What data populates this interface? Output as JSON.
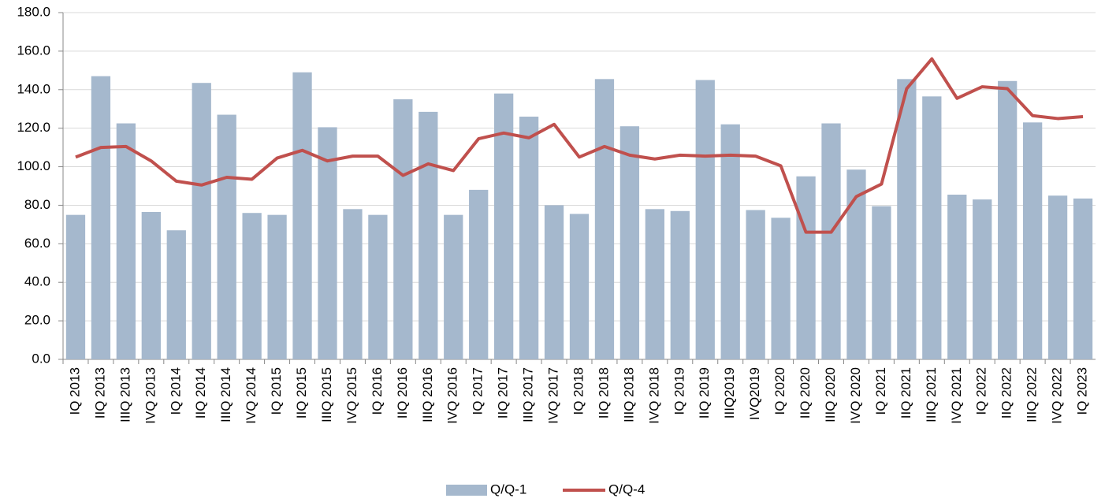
{
  "chart_data": {
    "type": "bar_line",
    "categories": [
      "IQ 2013",
      "IIQ 2013",
      "IIIQ 2013",
      "IVQ 2013",
      "IQ 2014",
      "IIQ 2014",
      "IIIQ 2014",
      "IVQ 2014",
      "IQ 2015",
      "IIQ 2015",
      "IIIQ 2015",
      "IVQ 2015",
      "IQ 2016",
      "IIQ 2016",
      "IIIQ 2016",
      "IVQ 2016",
      "IQ 2017",
      "IIQ 2017",
      "IIIQ 2017",
      "IVQ 2017",
      "IQ 2018",
      "IIQ 2018",
      "IIIQ 2018",
      "IVQ 2018",
      "IQ 2019",
      "IIQ 2019",
      "IIIQ2019",
      "IVQ2019",
      "IQ 2020",
      "IIQ 2020",
      "IIIQ 2020",
      "IVQ 2020",
      "IQ 2021",
      "IIQ 2021",
      "IIIQ 2021",
      "IVQ 2021",
      "IQ 2022",
      "IIQ 2022",
      "IIIQ 2022",
      "IVQ 2022",
      "IQ 2023"
    ],
    "series": [
      {
        "name": "Q/Q-1",
        "kind": "bar",
        "color": "#a5b8cd",
        "values": [
          75,
          147,
          122.5,
          76.5,
          67,
          143.5,
          127,
          76,
          75,
          149,
          120.5,
          78,
          75,
          135,
          128.5,
          75,
          88,
          138,
          126,
          80,
          75.5,
          145.5,
          121,
          78,
          77,
          145,
          122,
          77.5,
          73.5,
          95,
          122.5,
          98.5,
          79.5,
          145.5,
          136.5,
          85.5,
          83,
          144.5,
          123,
          85,
          83.5
        ]
      },
      {
        "name": "Q/Q-4",
        "kind": "line",
        "color": "#c0504d",
        "values": [
          105,
          110,
          110.5,
          103,
          92.5,
          90.5,
          94.5,
          93.5,
          104.5,
          108.5,
          103,
          105.5,
          105.5,
          95.5,
          101.5,
          98,
          114.5,
          117.5,
          115,
          122,
          105,
          110.5,
          106,
          104,
          106,
          105.5,
          106,
          105.5,
          100.5,
          66,
          66,
          84.5,
          91,
          140.5,
          156,
          135.5,
          141.5,
          140.5,
          126.5,
          125,
          126
        ]
      }
    ],
    "ylim": [
      0,
      180
    ],
    "yticks": [
      {
        "value": 0,
        "label": "0.0"
      },
      {
        "value": 20,
        "label": "20.0"
      },
      {
        "value": 40,
        "label": "40.0"
      },
      {
        "value": 60,
        "label": "60.0"
      },
      {
        "value": 80,
        "label": "80.0"
      },
      {
        "value": 100,
        "label": "100.0"
      },
      {
        "value": 120,
        "label": "120.0"
      },
      {
        "value": 140,
        "label": "140.0"
      },
      {
        "value": 160,
        "label": "160.0"
      },
      {
        "value": 180,
        "label": "180.0"
      }
    ],
    "grid": true,
    "legend": "bottom"
  }
}
